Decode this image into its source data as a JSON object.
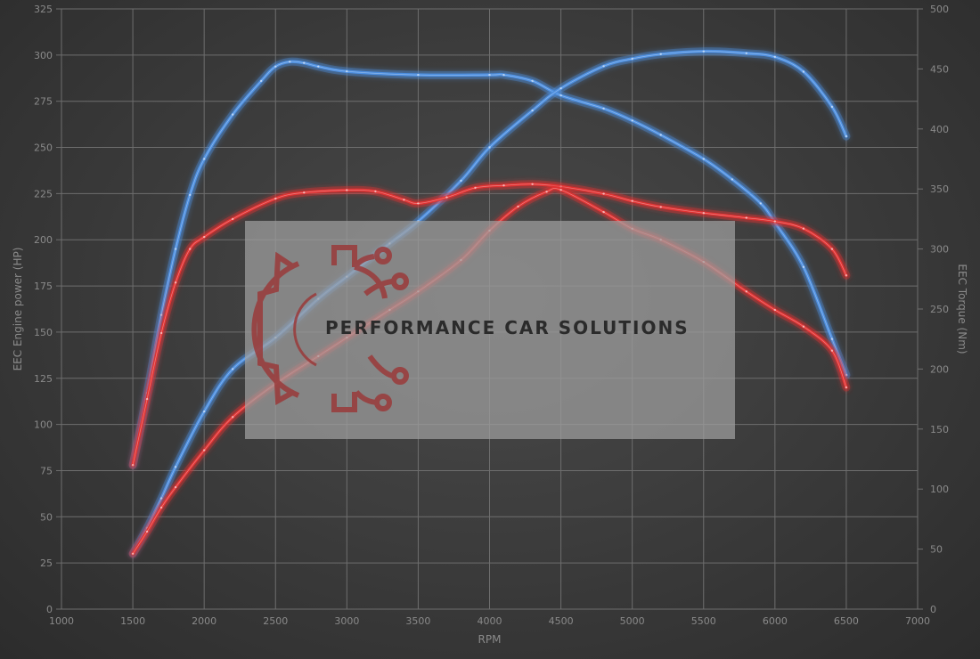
{
  "chart_data": {
    "type": "line",
    "xlabel": "RPM",
    "ylabel_left": "EEC Engine power (HP)",
    "ylabel_right": "EEC Torque (Nm)",
    "xlim": [
      1000,
      7000
    ],
    "ylim_left": [
      0,
      325
    ],
    "ylim_right": [
      0,
      500
    ],
    "x_ticks": [
      1000,
      1500,
      2000,
      2500,
      3000,
      3500,
      4000,
      4500,
      5000,
      5500,
      6000,
      6500,
      7000
    ],
    "y_ticks_left": [
      0,
      25,
      50,
      75,
      100,
      125,
      150,
      175,
      200,
      225,
      250,
      275,
      300,
      325
    ],
    "y_ticks_right": [
      0,
      50,
      100,
      150,
      200,
      250,
      300,
      350,
      400,
      450,
      500
    ],
    "grid": true,
    "series": [
      {
        "color": "#4d8fe0",
        "axis": "right",
        "x": [
          1500,
          1600,
          1700,
          1800,
          1900,
          2000,
          2200,
          2400,
          2500,
          2600,
          2700,
          2800,
          3000,
          3500,
          4000,
          4100,
          4300,
          4500,
          4800,
          5000,
          5200,
          5500,
          5700,
          5900,
          6000,
          6200,
          6400,
          6500
        ],
        "y": [
          120,
          180,
          245,
          300,
          345,
          375,
          412,
          440,
          452,
          456,
          455,
          452,
          448,
          445,
          445,
          445,
          440,
          428,
          417,
          407,
          395,
          375,
          358,
          338,
          322,
          285,
          225,
          195
        ]
      },
      {
        "color": "#4d8fe0",
        "axis": "left",
        "x": [
          1500,
          1600,
          1700,
          1800,
          2000,
          2200,
          2500,
          2800,
          3000,
          3300,
          3500,
          3800,
          4000,
          4300,
          4500,
          4800,
          5000,
          5200,
          5500,
          5800,
          6000,
          6200,
          6400,
          6500
        ],
        "y": [
          30,
          44,
          60,
          77,
          107,
          130,
          147,
          168,
          180,
          198,
          210,
          232,
          250,
          270,
          282,
          294,
          298,
          300.5,
          302,
          301,
          299,
          291,
          272,
          256
        ]
      },
      {
        "color": "#e03232",
        "axis": "right",
        "x": [
          1500,
          1600,
          1700,
          1800,
          1900,
          2000,
          2200,
          2500,
          2700,
          3000,
          3200,
          3400,
          3500,
          3700,
          3900,
          4100,
          4300,
          4500,
          4800,
          5000,
          5200,
          5500,
          5800,
          6000,
          6200,
          6400,
          6500
        ],
        "y": [
          120,
          175,
          230,
          272,
          300,
          310,
          325,
          342,
          347,
          349,
          348,
          341,
          338,
          343,
          351,
          353,
          354,
          352,
          346,
          340,
          335,
          330,
          326,
          323,
          317,
          300,
          278
        ]
      },
      {
        "color": "#e03232",
        "axis": "left",
        "x": [
          1500,
          1600,
          1700,
          1800,
          2000,
          2200,
          2500,
          2800,
          3000,
          3300,
          3500,
          3800,
          4000,
          4200,
          4400,
          4500,
          4800,
          5000,
          5200,
          5500,
          5800,
          6000,
          6200,
          6400,
          6500
        ],
        "y": [
          30,
          42,
          55,
          66,
          86,
          104,
          122,
          137,
          147,
          162,
          172,
          189,
          205,
          218,
          226,
          227,
          215,
          206,
          200,
          188,
          172,
          162,
          153,
          140,
          120
        ]
      }
    ]
  },
  "watermark": {
    "text": "PERFORMANCE CAR SOLUTIONS"
  }
}
